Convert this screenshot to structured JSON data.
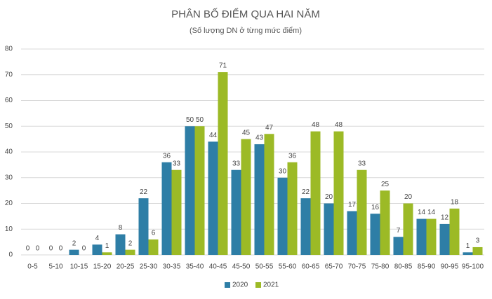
{
  "chart_data": {
    "type": "bar",
    "title": "PHÂN BỐ ĐIỂM QUA HAI NĂM",
    "subtitle": "(Số lượng DN ở từng mức điểm)",
    "categories": [
      "0-5",
      "5-10",
      "10-15",
      "15-20",
      "20-25",
      "25-30",
      "30-35",
      "35-40",
      "40-45",
      "45-50",
      "50-55",
      "55-60",
      "60-65",
      "65-70",
      "70-75",
      "75-80",
      "80-85",
      "85-90",
      "90-95",
      "95-100"
    ],
    "series": [
      {
        "name": "2020",
        "color": "#2e7ea6",
        "values": [
          0,
          0,
          2,
          4,
          8,
          22,
          36,
          50,
          44,
          33,
          43,
          30,
          22,
          20,
          17,
          16,
          7,
          14,
          12,
          1
        ]
      },
      {
        "name": "2021",
        "color": "#9cba26",
        "values": [
          0,
          0,
          0,
          1,
          2,
          6,
          33,
          50,
          71,
          45,
          47,
          36,
          48,
          48,
          33,
          25,
          20,
          14,
          18,
          3
        ]
      }
    ],
    "ylim": [
      0,
      80
    ],
    "yticks": [
      0,
      10,
      20,
      30,
      40,
      50,
      60,
      70,
      80
    ],
    "grid": true,
    "legend": "bottom"
  }
}
